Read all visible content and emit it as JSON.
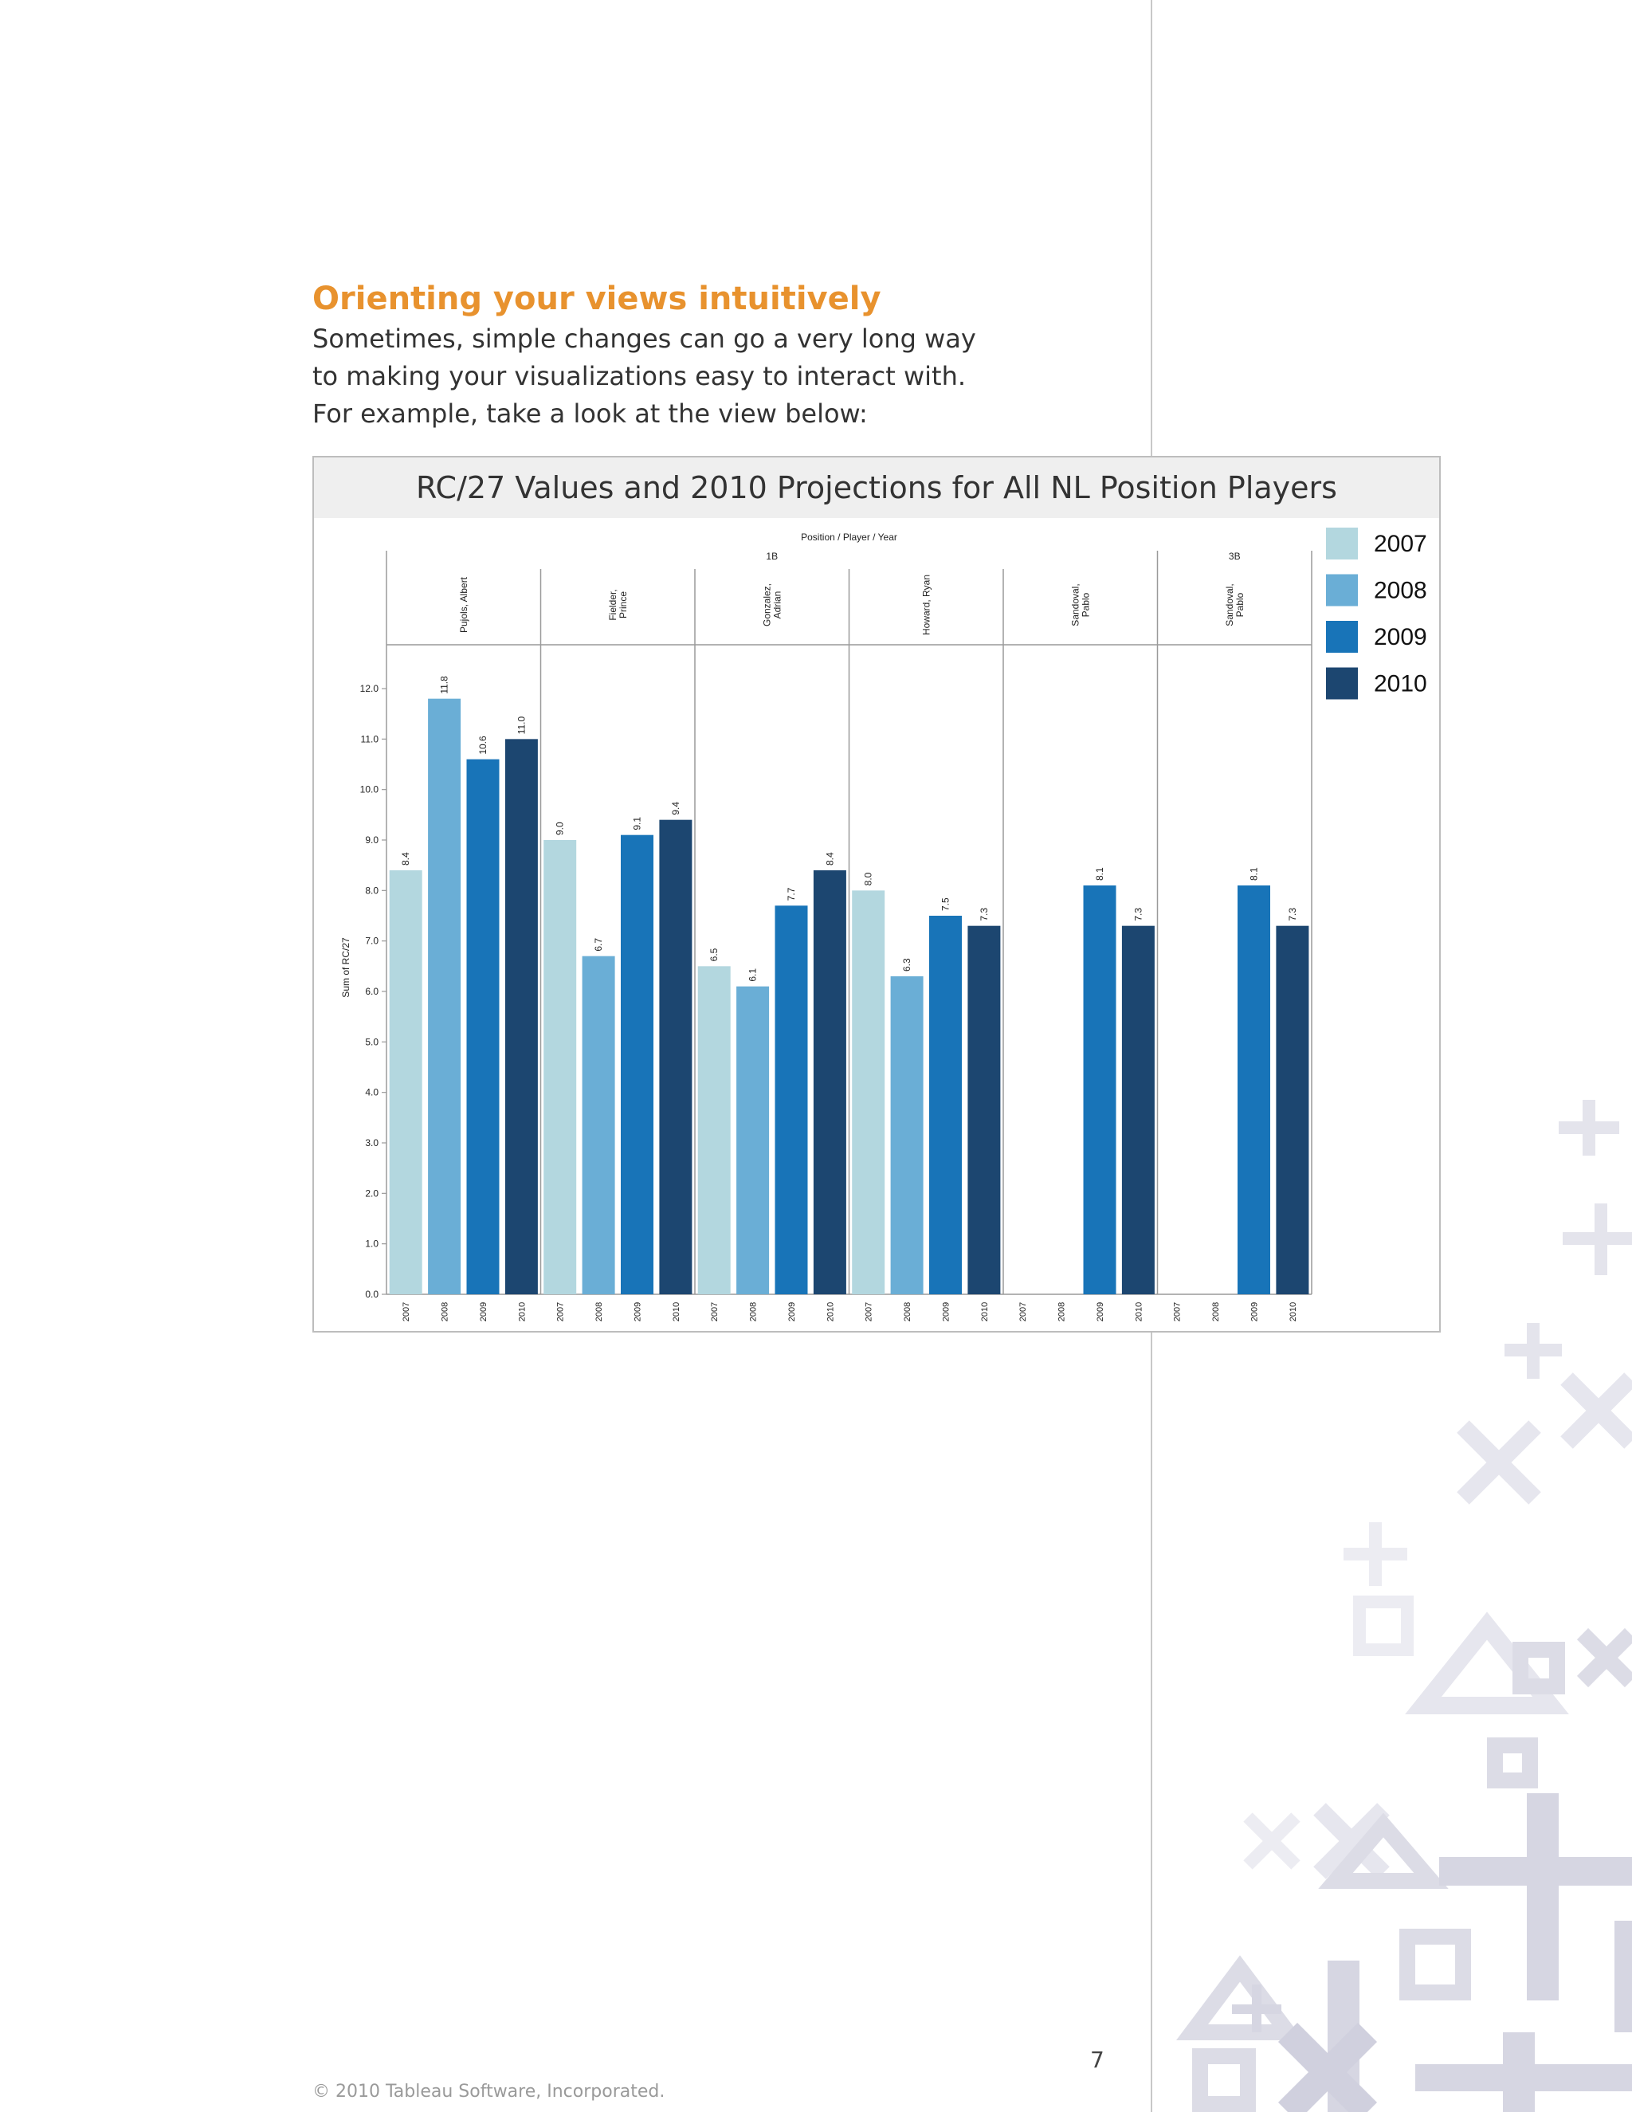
{
  "heading": "Orienting your views intuitively",
  "intro_lines": [
    "Sometimes, simple changes can go a very long way",
    "to making your visualizations easy to interact with.",
    "For example, take a look at the view below:"
  ],
  "footer": "© 2010 Tableau Software, Incorporated.",
  "page_number": "7",
  "chart_data": {
    "type": "bar",
    "title": "RC/27 Values and 2010 Projections for All NL Position Players",
    "header_path": "Position  /  Player  /  Year",
    "ylabel": "Sum of RC/27",
    "ylim": [
      0,
      12
    ],
    "yticks": [
      "0.0",
      "1.0",
      "2.0",
      "3.0",
      "4.0",
      "5.0",
      "6.0",
      "7.0",
      "8.0",
      "9.0",
      "10.0",
      "11.0",
      "12.0"
    ],
    "years": [
      "2007",
      "2008",
      "2009",
      "2010"
    ],
    "colors": [
      "#b3d7df",
      "#6aaed6",
      "#1874b8",
      "#1c4670"
    ],
    "positions": [
      {
        "name": "1B",
        "span": [
          0,
          4
        ]
      },
      {
        "name": "3B",
        "span": [
          5,
          5
        ]
      }
    ],
    "players": [
      {
        "name": "Pujols, Albert",
        "values": [
          8.4,
          11.8,
          10.6,
          11.0
        ],
        "labels": [
          "8.4",
          "11.8",
          "10.6",
          "11.0"
        ]
      },
      {
        "name": "Fielder, Prince",
        "values": [
          9.0,
          6.7,
          9.1,
          9.4
        ],
        "labels": [
          "9.0",
          "6.7",
          "9.1",
          "9.4"
        ]
      },
      {
        "name": "Gonzalez, Adrian",
        "values": [
          6.5,
          6.1,
          7.7,
          8.4
        ],
        "labels": [
          "6.5",
          "6.1",
          "7.7",
          "8.4"
        ]
      },
      {
        "name": "Howard, Ryan",
        "values": [
          8.0,
          6.3,
          7.5,
          7.3
        ],
        "labels": [
          "8.0",
          "6.3",
          "7.5",
          "7.3"
        ]
      },
      {
        "name": "Sandoval, Pablo",
        "values": [
          null,
          null,
          8.1,
          7.3
        ],
        "labels": [
          "",
          "",
          "8.1",
          "7.3"
        ]
      },
      {
        "name": "Sandoval, Pablo",
        "values": [
          null,
          null,
          8.1,
          7.3
        ],
        "labels": [
          "",
          "",
          "8.1",
          "7.3"
        ]
      }
    ],
    "legend": {
      "position": "top-right",
      "entries": [
        "2007",
        "2008",
        "2009",
        "2010"
      ]
    },
    "grid": false
  }
}
